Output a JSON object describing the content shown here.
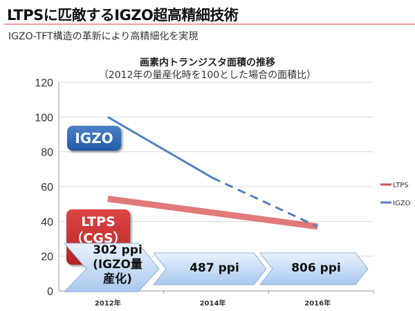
{
  "header": {
    "title": "LTPSに匹敵するIGZO超高精細技術",
    "subtitle": "IGZO-TFT構造の革新により高精細化を実現"
  },
  "chart_data": {
    "type": "line",
    "title": "画素内トランジスタ面積の推移",
    "subtitle": "（2012年の量産化時を100とした場合の面積比）",
    "categories": [
      "2012年",
      "2014年",
      "2016年"
    ],
    "ylim": [
      0,
      120
    ],
    "yticks": [
      "0",
      "20",
      "40",
      "60",
      "80",
      "100",
      "120"
    ],
    "grid": true,
    "legend_position": "right",
    "series": [
      {
        "name": "LTPS",
        "values": [
          53,
          45,
          37
        ],
        "color": "#d9534f"
      },
      {
        "name": "IGZO",
        "values": [
          100,
          65,
          37
        ],
        "color": "#4f81bd",
        "dashed_from": "2014年"
      }
    ],
    "annotations": {
      "igzo_label": "IGZO",
      "ltps_label_1": "LTPS",
      "ltps_label_2": "（CGS）",
      "ppi": [
        {
          "line1": "302 ppi",
          "line2": "(IGZO量",
          "line3": "産化)"
        },
        {
          "line1": "487 ppi"
        },
        {
          "line1": "806 ppi"
        }
      ]
    }
  }
}
